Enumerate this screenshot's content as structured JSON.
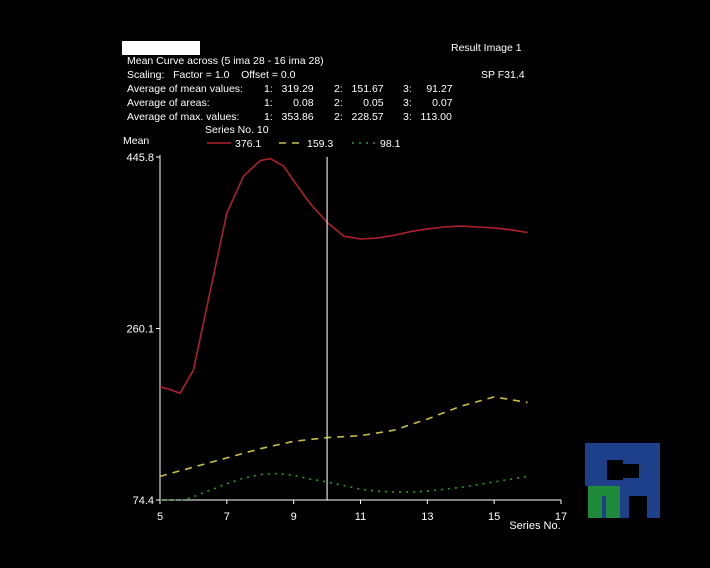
{
  "header": {
    "title": "Mean Curve across (5 ima 28 - 16 ima 28)",
    "result_label": "Result Image 1",
    "scaling": "Scaling:   Factor = 1.0    Offset = 0.0",
    "sp_label": "SP F31.4",
    "stats": [
      {
        "label": "Average of mean values:",
        "v1": "1:   319.29",
        "v2": "2:   151.67",
        "v3": "3:     91.27"
      },
      {
        "label": "Average of areas:",
        "v1": "1:       0.08",
        "v2": "2:       0.05",
        "v3": "3:       0.07"
      },
      {
        "label": "Average of max. values:",
        "v1": "1:   353.86",
        "v2": "2:   228.57",
        "v3": "3:   113.00"
      }
    ],
    "series_no": "Series No. 10"
  },
  "legend": [
    {
      "label": "376.1",
      "color": "#b0202a",
      "dash": "solid"
    },
    {
      "label": "159.3",
      "color": "#c8c040",
      "dash": "dash"
    },
    {
      "label": "98.1",
      "color": "#2a9a2a",
      "dash": "dot"
    }
  ],
  "chart_data": {
    "type": "line",
    "ylabel": "Mean",
    "xlabel": "Series No.",
    "xlim": [
      5,
      17
    ],
    "ylim": [
      74.4,
      445.8
    ],
    "x_ticks": [
      "5",
      "7",
      "9",
      "11",
      "13",
      "15",
      "17"
    ],
    "y_ticks": [
      "445.8",
      "260.1",
      "74.4"
    ],
    "marker_x": 10,
    "series": [
      {
        "color": "#b0202a",
        "dash": "solid",
        "x": [
          5,
          5.3,
          5.6,
          6,
          6.5,
          7,
          7.5,
          8,
          8.3,
          8.7,
          9,
          9.5,
          10,
          10.5,
          11,
          11.5,
          12,
          12.5,
          13,
          13.5,
          14,
          14.5,
          15,
          15.5,
          16
        ],
        "y": [
          197,
          194,
          190,
          215,
          300,
          385,
          425,
          442,
          444,
          436,
          420,
          395,
          375,
          360,
          357,
          358,
          361,
          365,
          368,
          370,
          371,
          370,
          369,
          367,
          364
        ]
      },
      {
        "color": "#c8c040",
        "dash": "dash",
        "x": [
          5,
          6,
          7,
          8,
          9,
          10,
          11,
          12,
          13,
          14,
          15,
          16
        ],
        "y": [
          100,
          110,
          120,
          130,
          138,
          142,
          144,
          150,
          162,
          176,
          186,
          180
        ]
      },
      {
        "color": "#2a9a2a",
        "dash": "dot",
        "x": [
          5,
          5.7,
          6,
          6.5,
          7,
          7.5,
          8,
          8.5,
          9,
          9.5,
          10,
          10.5,
          11,
          11.5,
          12,
          12.5,
          13,
          13.5,
          14,
          14.5,
          15,
          15.5,
          16
        ],
        "y": [
          74.4,
          74.4,
          78,
          85,
          92,
          98,
          102,
          103,
          101,
          97,
          94,
          90,
          86,
          84,
          83,
          83,
          84,
          86,
          88,
          91,
          94,
          97,
          100
        ]
      }
    ]
  }
}
